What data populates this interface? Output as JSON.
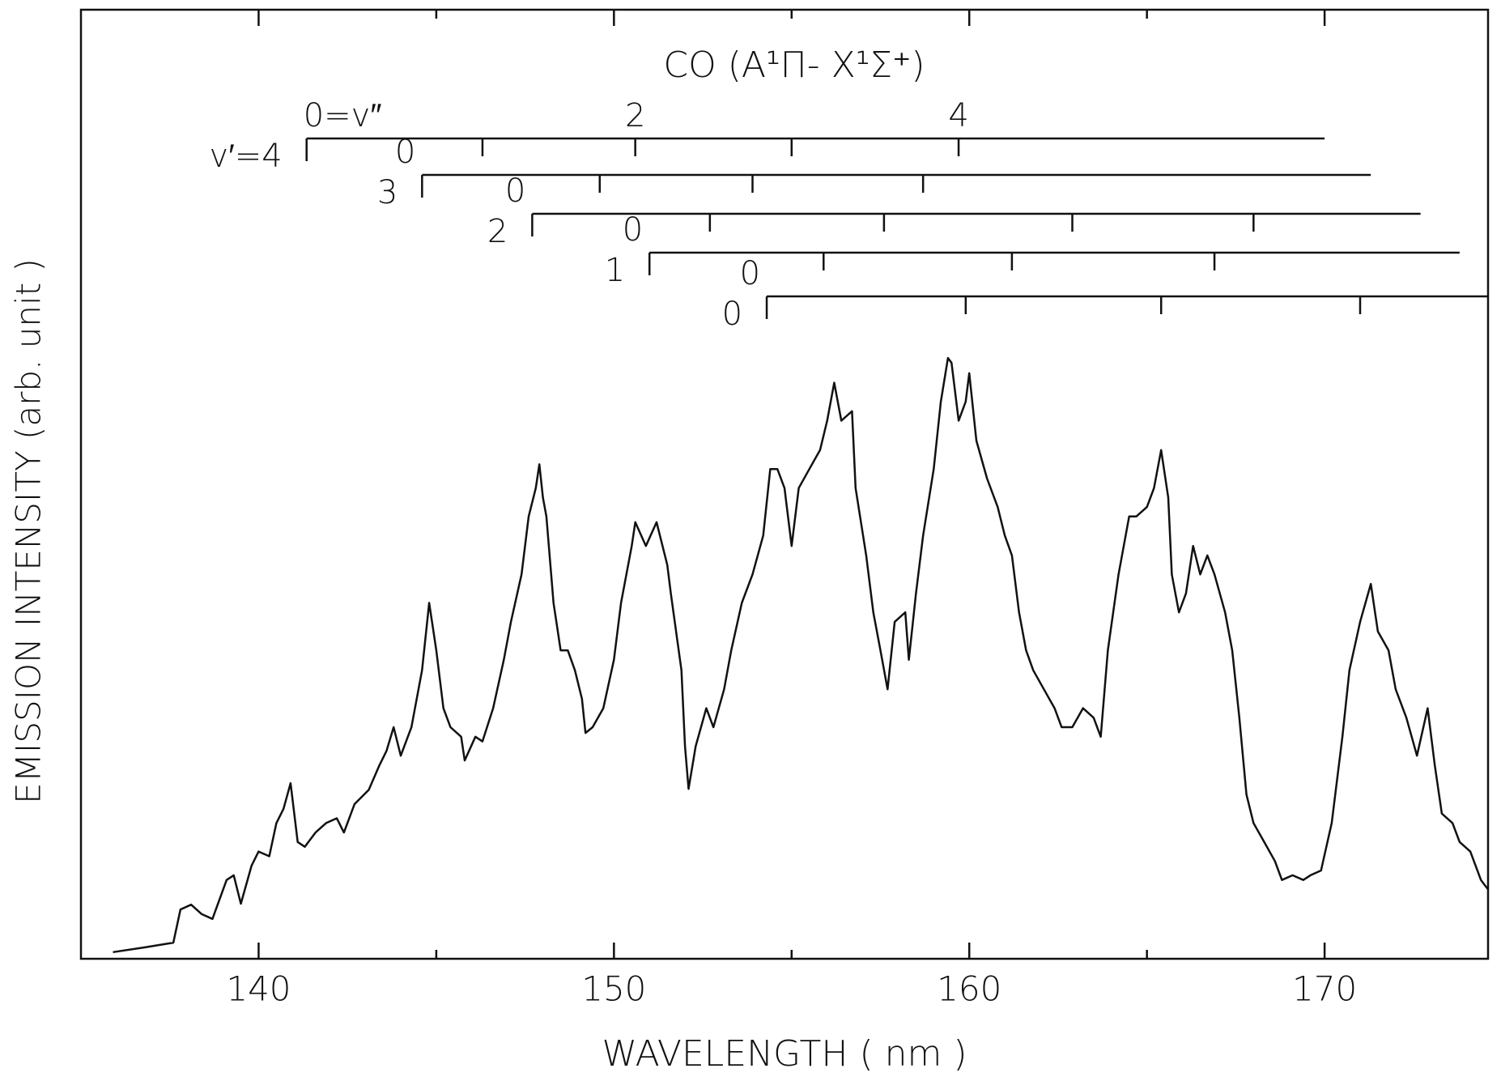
{
  "chart_data": {
    "type": "line",
    "title": "CO (A¹Π- X¹Σ⁺)",
    "x_label": "WAVELENGTH  ( nm )",
    "y_label": "EMISSION  INTENSITY  (arb. unit )",
    "color": "#111111",
    "xlim": [
      135.0,
      174.6
    ],
    "ylim": [
      0,
      100
    ],
    "xticks": [
      140,
      150,
      160,
      170
    ],
    "xminorticks": [
      145,
      155,
      165
    ],
    "x": [
      135.9,
      136.8,
      137.6,
      137.8,
      138.1,
      138.4,
      138.7,
      139.1,
      139.3,
      139.5,
      139.8,
      140.0,
      140.3,
      140.5,
      140.7,
      140.9,
      141.1,
      141.3,
      141.6,
      141.9,
      142.2,
      142.4,
      142.7,
      143.1,
      143.4,
      143.6,
      143.8,
      144.0,
      144.3,
      144.6,
      144.8,
      145.0,
      145.2,
      145.4,
      145.7,
      145.8,
      146.1,
      146.3,
      146.6,
      146.9,
      147.1,
      147.4,
      147.6,
      147.8,
      147.9,
      148.0,
      148.1,
      148.3,
      148.5,
      148.7,
      148.9,
      149.1,
      149.2,
      149.4,
      149.7,
      150.0,
      150.2,
      150.5,
      150.6,
      150.9,
      151.2,
      151.5,
      151.6,
      151.9,
      152.0,
      152.1,
      152.3,
      152.6,
      152.8,
      153.1,
      153.3,
      153.6,
      153.9,
      154.2,
      154.4,
      154.6,
      154.8,
      155.0,
      155.2,
      155.5,
      155.8,
      156.0,
      156.2,
      156.4,
      156.7,
      156.8,
      157.1,
      157.3,
      157.5,
      157.7,
      157.9,
      158.2,
      158.3,
      158.5,
      158.7,
      159.0,
      159.2,
      159.4,
      159.5,
      159.7,
      159.9,
      160.0,
      160.2,
      160.5,
      160.8,
      161.0,
      161.2,
      161.4,
      161.6,
      161.8,
      162.1,
      162.4,
      162.6,
      162.9,
      163.2,
      163.5,
      163.7,
      163.9,
      164.2,
      164.5,
      164.7,
      165.0,
      165.2,
      165.4,
      165.6,
      165.7,
      165.9,
      166.1,
      166.3,
      166.5,
      166.7,
      166.9,
      167.2,
      167.4,
      167.6,
      167.8,
      168.0,
      168.3,
      168.6,
      168.8,
      169.1,
      169.4,
      169.6,
      169.9,
      170.2,
      170.5,
      170.7,
      171.0,
      171.3,
      171.5,
      171.8,
      172.0,
      172.3,
      172.6,
      172.9,
      173.1,
      173.3,
      173.6,
      173.8,
      174.1,
      174.4,
      174.6
    ],
    "values": [
      0.7,
      1.2,
      1.7,
      5.2,
      5.7,
      4.7,
      4.2,
      8.3,
      8.8,
      5.8,
      9.8,
      11.3,
      10.8,
      14.3,
      15.8,
      18.5,
      12.3,
      11.8,
      13.3,
      14.3,
      14.8,
      13.3,
      16.3,
      17.8,
      20.4,
      21.9,
      24.4,
      21.4,
      24.4,
      30.4,
      37.5,
      32.5,
      26.4,
      24.4,
      23.4,
      20.9,
      23.4,
      22.9,
      26.4,
      31.5,
      35.5,
      40.5,
      46.6,
      49.6,
      52.1,
      48.6,
      46.6,
      37.5,
      32.5,
      32.5,
      30.4,
      27.4,
      23.8,
      24.4,
      26.4,
      31.5,
      37.5,
      43.5,
      46.0,
      43.5,
      46.0,
      41.5,
      38.5,
      30.4,
      22.4,
      17.9,
      22.4,
      26.4,
      24.4,
      28.4,
      32.5,
      37.5,
      40.5,
      44.6,
      51.6,
      51.6,
      49.6,
      43.5,
      49.6,
      51.6,
      53.6,
      56.7,
      60.7,
      56.7,
      57.7,
      49.6,
      42.5,
      36.5,
      32.5,
      28.4,
      35.5,
      36.5,
      31.5,
      38.5,
      44.6,
      51.6,
      58.7,
      63.3,
      62.8,
      56.7,
      58.7,
      61.7,
      54.6,
      50.6,
      47.6,
      44.6,
      42.5,
      36.5,
      32.5,
      30.4,
      28.4,
      26.4,
      24.4,
      24.4,
      26.4,
      25.4,
      23.4,
      32.5,
      40.5,
      46.6,
      46.6,
      47.6,
      49.6,
      53.6,
      48.6,
      40.5,
      36.5,
      38.5,
      43.5,
      40.5,
      42.5,
      40.5,
      36.5,
      32.5,
      25.4,
      17.3,
      14.3,
      12.3,
      10.3,
      8.3,
      8.8,
      8.3,
      8.8,
      9.3,
      14.3,
      23.4,
      30.4,
      35.5,
      39.5,
      34.5,
      32.5,
      28.4,
      25.4,
      21.4,
      26.4,
      20.4,
      15.3,
      14.3,
      12.3,
      11.3,
      8.3,
      7.3
    ],
    "progressions": [
      {
        "label": "v′=4",
        "bands": [
          141.35,
          146.3,
          150.6,
          155.0,
          159.7
        ],
        "band_labels": [
          "0=v″",
          null,
          "2",
          null,
          "4"
        ],
        "line_end": 170.0
      },
      {
        "label": "3",
        "bands": [
          144.6,
          149.6,
          153.9,
          158.7
        ],
        "band_labels": [
          "0",
          null,
          null,
          null
        ],
        "line_end": 171.3
      },
      {
        "label": "2",
        "bands": [
          147.7,
          152.7,
          157.6,
          162.9,
          168.0
        ],
        "band_labels": [
          "0",
          null,
          null,
          null,
          null
        ],
        "line_end": 172.7
      },
      {
        "label": "1",
        "bands": [
          151.0,
          155.9,
          161.2,
          166.9
        ],
        "band_labels": [
          "0",
          null,
          null,
          null
        ],
        "line_end": 173.8
      },
      {
        "label": "0",
        "bands": [
          154.3,
          159.9,
          165.4,
          171.0
        ],
        "band_labels": [
          "0",
          null,
          null,
          null
        ],
        "line_end": 174.6
      }
    ]
  }
}
